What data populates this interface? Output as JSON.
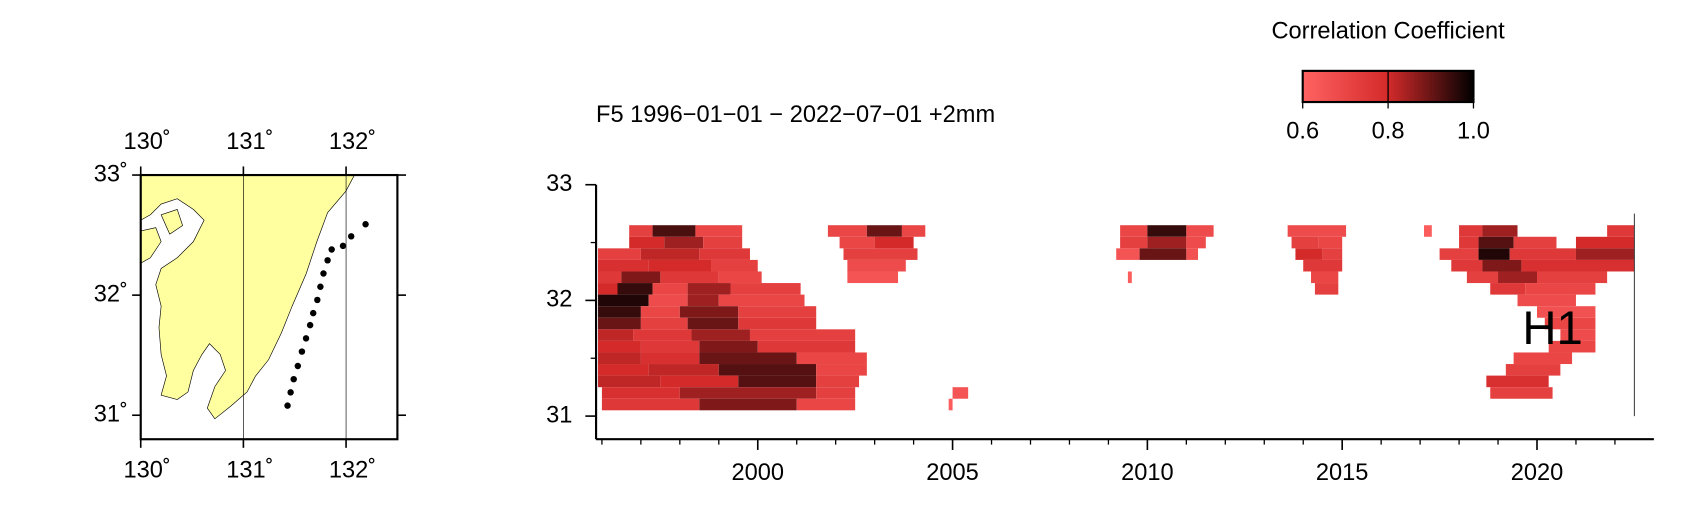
{
  "chart_data": [
    {
      "type": "map",
      "xlim": [
        130,
        132.5
      ],
      "ylim": [
        30.8,
        33
      ],
      "xticks": [
        {
          "value": 130,
          "label": "130˚"
        },
        {
          "value": 131,
          "label": "131˚"
        },
        {
          "value": 132,
          "label": "132˚"
        }
      ],
      "yticks": [
        {
          "value": 31,
          "label": "31˚"
        },
        {
          "value": 32,
          "label": "32˚"
        },
        {
          "value": 33,
          "label": "33˚"
        }
      ],
      "grid": true,
      "land_color": "#ffffa0",
      "point_color": "#000000",
      "points": [
        [
          131.43,
          31.08
        ],
        [
          131.46,
          31.19
        ],
        [
          131.49,
          31.3
        ],
        [
          131.53,
          31.41
        ],
        [
          131.57,
          31.53
        ],
        [
          131.61,
          31.64
        ],
        [
          131.65,
          31.75
        ],
        [
          131.68,
          31.85
        ],
        [
          131.72,
          31.96
        ],
        [
          131.75,
          32.07
        ],
        [
          131.78,
          32.18
        ],
        [
          131.82,
          32.29
        ],
        [
          131.86,
          32.38
        ],
        [
          131.97,
          32.41
        ],
        [
          132.05,
          32.49
        ],
        [
          132.19,
          32.59
        ]
      ]
    },
    {
      "type": "heatmap",
      "title": "F5 1996−01−01 − 2022−07−01  +2mm",
      "annotation": {
        "text": "H1",
        "x": 2020.4,
        "y": 31.73
      },
      "xlim": [
        1995.85,
        2023
      ],
      "ylim": [
        30.8,
        33
      ],
      "xticks": [
        2000,
        2005,
        2010,
        2015,
        2020
      ],
      "xminorticks": [
        1996,
        1997,
        1998,
        1999,
        2001,
        2002,
        2003,
        2004,
        2006,
        2007,
        2008,
        2009,
        2011,
        2012,
        2013,
        2014,
        2016,
        2017,
        2018,
        2019,
        2021,
        2022
      ],
      "yticks": [
        31,
        32,
        33
      ],
      "yminorticks": [
        31.5,
        32.5
      ],
      "row_height": 0.1,
      "end_marker": {
        "x": 2022.5,
        "y": [
          31,
          32.75
        ]
      },
      "colorbar": {
        "title": "Correlation Coefficient",
        "lim": [
          0.6,
          1.0
        ],
        "ticks": [
          0.6,
          0.8,
          {
            "value": 1.0,
            "label": "1.0"
          }
        ]
      },
      "colormap": [
        [
          0.6,
          "#ff6262"
        ],
        [
          0.8,
          "#d42a2a"
        ],
        [
          1.0,
          "#000000"
        ]
      ],
      "cells": [
        [
          1996.7,
          1997.3,
          32.6,
          0.72
        ],
        [
          1997.3,
          1998.4,
          32.6,
          0.93
        ],
        [
          1998.4,
          1999.6,
          32.6,
          0.7
        ],
        [
          1996.7,
          1997.6,
          32.5,
          0.8
        ],
        [
          1997.6,
          1998.6,
          32.5,
          0.85
        ],
        [
          1998.6,
          1999.6,
          32.5,
          0.72
        ],
        [
          1995.9,
          1997.0,
          32.4,
          0.72
        ],
        [
          1997.0,
          1998.5,
          32.4,
          0.82
        ],
        [
          1998.5,
          1999.8,
          32.4,
          0.75
        ],
        [
          1995.9,
          1997.2,
          32.3,
          0.78
        ],
        [
          1997.2,
          1998.8,
          32.3,
          0.8
        ],
        [
          1998.8,
          2000.0,
          32.3,
          0.72
        ],
        [
          1995.9,
          1996.5,
          32.2,
          0.75
        ],
        [
          1996.5,
          1997.5,
          32.2,
          0.88
        ],
        [
          1997.5,
          1999.0,
          32.2,
          0.75
        ],
        [
          1999.0,
          2000.1,
          32.2,
          0.7
        ],
        [
          1995.9,
          1996.4,
          32.1,
          0.8
        ],
        [
          1996.4,
          1997.3,
          32.1,
          0.95
        ],
        [
          1997.3,
          1998.2,
          32.1,
          0.7
        ],
        [
          1998.2,
          1999.3,
          32.1,
          0.85
        ],
        [
          1999.3,
          2001.1,
          32.1,
          0.72
        ],
        [
          1995.9,
          1997.2,
          32.0,
          0.97
        ],
        [
          1997.2,
          1998.2,
          32.0,
          0.68
        ],
        [
          1998.2,
          1999.0,
          32.0,
          0.85
        ],
        [
          1999.0,
          2001.2,
          32.0,
          0.7
        ],
        [
          1995.9,
          1997.0,
          31.9,
          0.95
        ],
        [
          1997.0,
          1998.0,
          31.9,
          0.7
        ],
        [
          1998.0,
          1999.5,
          31.9,
          0.88
        ],
        [
          1999.5,
          2001.5,
          31.9,
          0.72
        ],
        [
          1995.9,
          1997.0,
          31.8,
          0.9
        ],
        [
          1997.0,
          1998.2,
          31.8,
          0.72
        ],
        [
          1998.2,
          1999.5,
          31.8,
          0.9
        ],
        [
          1999.5,
          2001.5,
          31.8,
          0.75
        ],
        [
          1995.9,
          1996.8,
          31.7,
          0.82
        ],
        [
          1996.8,
          1998.3,
          31.7,
          0.75
        ],
        [
          1998.3,
          1999.8,
          31.7,
          0.85
        ],
        [
          1999.8,
          2002.5,
          31.7,
          0.72
        ],
        [
          1995.9,
          1997.0,
          31.6,
          0.8
        ],
        [
          1997.0,
          1998.5,
          31.6,
          0.75
        ],
        [
          1998.5,
          2000.0,
          31.6,
          0.88
        ],
        [
          2000.0,
          2002.5,
          31.6,
          0.75
        ],
        [
          1995.9,
          1997.0,
          31.5,
          0.82
        ],
        [
          1997.0,
          1998.5,
          31.5,
          0.78
        ],
        [
          1998.5,
          2001.0,
          31.5,
          0.9
        ],
        [
          2001.0,
          2002.8,
          31.5,
          0.7
        ],
        [
          1995.9,
          1997.2,
          31.4,
          0.8
        ],
        [
          1997.2,
          1999.0,
          31.4,
          0.82
        ],
        [
          1999.0,
          2001.5,
          31.4,
          0.92
        ],
        [
          2001.5,
          2002.8,
          31.4,
          0.7
        ],
        [
          1995.9,
          1997.5,
          31.3,
          0.82
        ],
        [
          1997.5,
          1999.5,
          31.3,
          0.8
        ],
        [
          1999.5,
          2001.5,
          31.3,
          0.92
        ],
        [
          2001.5,
          2002.6,
          31.3,
          0.72
        ],
        [
          1996.0,
          1998.0,
          31.2,
          0.78
        ],
        [
          1998.0,
          2001.5,
          31.2,
          0.85
        ],
        [
          2001.5,
          2002.5,
          31.2,
          0.72
        ],
        [
          1996.0,
          1998.5,
          31.1,
          0.75
        ],
        [
          1998.5,
          2001.0,
          31.1,
          0.88
        ],
        [
          2001.0,
          2002.5,
          31.1,
          0.7
        ],
        [
          2001.8,
          2002.8,
          32.6,
          0.7
        ],
        [
          2002.8,
          2003.7,
          32.6,
          0.9
        ],
        [
          2003.7,
          2004.3,
          32.6,
          0.7
        ],
        [
          2002.1,
          2003.0,
          32.5,
          0.7
        ],
        [
          2003.0,
          2004.0,
          32.5,
          0.8
        ],
        [
          2002.2,
          2004.1,
          32.4,
          0.72
        ],
        [
          2002.3,
          2003.8,
          32.3,
          0.68
        ],
        [
          2002.3,
          2003.6,
          32.2,
          0.65
        ],
        [
          2005.0,
          2005.4,
          31.2,
          0.65
        ],
        [
          2004.9,
          2005.0,
          31.1,
          0.62
        ],
        [
          2009.3,
          2010.0,
          32.6,
          0.7
        ],
        [
          2010.0,
          2011.0,
          32.6,
          0.95
        ],
        [
          2011.0,
          2011.7,
          32.6,
          0.68
        ],
        [
          2009.3,
          2010.0,
          32.5,
          0.72
        ],
        [
          2010.0,
          2011.0,
          32.5,
          0.85
        ],
        [
          2011.0,
          2011.5,
          32.5,
          0.68
        ],
        [
          2009.2,
          2009.8,
          32.4,
          0.65
        ],
        [
          2009.8,
          2011.0,
          32.4,
          0.9
        ],
        [
          2011.0,
          2011.3,
          32.4,
          0.66
        ],
        [
          2009.5,
          2009.6,
          32.2,
          0.62
        ],
        [
          2013.6,
          2015.1,
          32.6,
          0.68
        ],
        [
          2013.7,
          2014.4,
          32.5,
          0.72
        ],
        [
          2014.4,
          2015.0,
          32.5,
          0.7
        ],
        [
          2013.8,
          2014.5,
          32.4,
          0.8
        ],
        [
          2014.5,
          2015.0,
          32.4,
          0.72
        ],
        [
          2014.0,
          2015.0,
          32.3,
          0.75
        ],
        [
          2014.2,
          2014.9,
          32.2,
          0.7
        ],
        [
          2014.3,
          2014.9,
          32.1,
          0.72
        ],
        [
          2017.1,
          2017.3,
          32.6,
          0.62
        ],
        [
          2018.0,
          2018.6,
          32.6,
          0.75
        ],
        [
          2018.6,
          2019.5,
          32.6,
          0.85
        ],
        [
          2021.8,
          2022.5,
          32.6,
          0.75
        ],
        [
          2018.0,
          2018.5,
          32.5,
          0.75
        ],
        [
          2018.5,
          2019.4,
          32.5,
          0.92
        ],
        [
          2019.4,
          2020.5,
          32.5,
          0.72
        ],
        [
          2021.0,
          2022.5,
          32.5,
          0.8
        ],
        [
          2017.5,
          2018.5,
          32.4,
          0.72
        ],
        [
          2018.5,
          2019.3,
          32.4,
          0.97
        ],
        [
          2019.3,
          2021.0,
          32.4,
          0.75
        ],
        [
          2021.0,
          2022.5,
          32.4,
          0.85
        ],
        [
          2017.8,
          2018.6,
          32.3,
          0.75
        ],
        [
          2018.6,
          2019.6,
          32.3,
          0.88
        ],
        [
          2019.6,
          2022.5,
          32.3,
          0.78
        ],
        [
          2018.2,
          2019.0,
          32.2,
          0.72
        ],
        [
          2019.0,
          2020.0,
          32.2,
          0.85
        ],
        [
          2020.0,
          2021.8,
          32.2,
          0.72
        ],
        [
          2018.8,
          2019.7,
          32.1,
          0.75
        ],
        [
          2019.7,
          2021.5,
          32.1,
          0.7
        ],
        [
          2019.5,
          2021.0,
          32.0,
          0.68
        ],
        [
          2020.0,
          2021.5,
          31.9,
          0.66
        ],
        [
          2020.2,
          2021.5,
          31.8,
          0.7
        ],
        [
          2020.6,
          2021.5,
          31.7,
          0.68
        ],
        [
          2020.3,
          2021.5,
          31.6,
          0.7
        ],
        [
          2019.4,
          2020.9,
          31.5,
          0.7
        ],
        [
          2019.2,
          2020.6,
          31.4,
          0.72
        ],
        [
          2018.7,
          2020.3,
          31.3,
          0.78
        ],
        [
          2018.8,
          2020.4,
          31.2,
          0.72
        ]
      ]
    }
  ]
}
